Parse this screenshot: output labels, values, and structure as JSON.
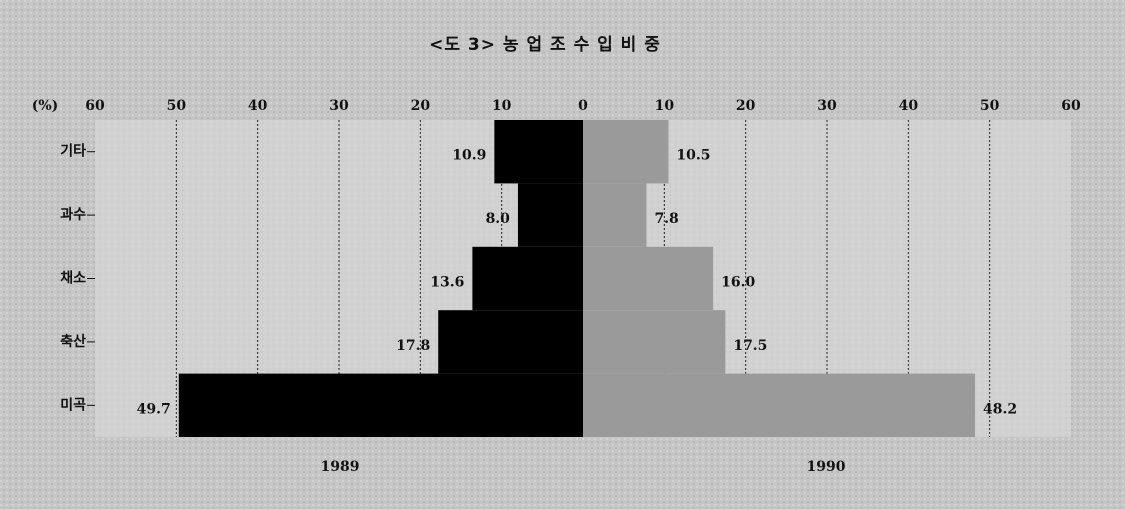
{
  "chart_data": {
    "type": "bar",
    "orientation": "horizontal-mirrored",
    "title": "<도 3>  농 업 조 수 입 비 중",
    "ylabel": "(%)",
    "categories": [
      "기타",
      "과수",
      "채소",
      "축산",
      "미곡"
    ],
    "series": [
      {
        "name": "1989",
        "color": "#000000",
        "values": [
          10.9,
          8.0,
          13.6,
          17.8,
          49.7
        ],
        "value_labels": [
          "10.9",
          "8.0",
          "13.6",
          "17.8",
          "49.7"
        ]
      },
      {
        "name": "1990",
        "color": "#9a9a9a",
        "values": [
          10.5,
          7.8,
          16.0,
          17.5,
          48.2
        ],
        "value_labels": [
          "10.5",
          "7.8",
          "16.0",
          "17.5",
          "48.2"
        ]
      }
    ],
    "xlim": [
      0,
      60
    ],
    "xticks": [
      0,
      10,
      20,
      30,
      40,
      50,
      60
    ],
    "grid": true
  }
}
